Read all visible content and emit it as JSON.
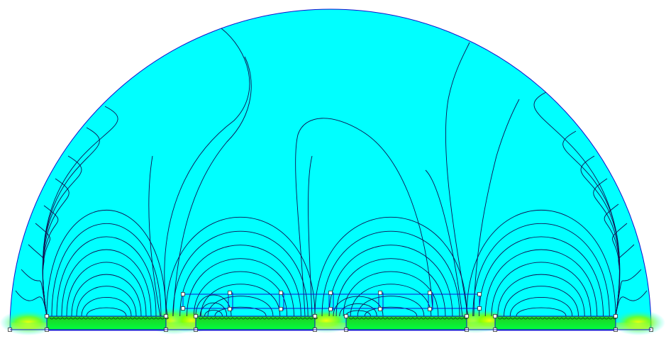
{
  "view": {
    "domain_fill": "#00ffff",
    "boundary_color": "#1010d0",
    "contour_color": "#101050",
    "high_field_colors": [
      "#ffff00",
      "#80ff00",
      "#00ff40",
      "#00c000"
    ],
    "node_marker": "small-square",
    "components": {
      "coils": 4,
      "cross_bar_posts": 6,
      "field_lines": "contour"
    }
  }
}
